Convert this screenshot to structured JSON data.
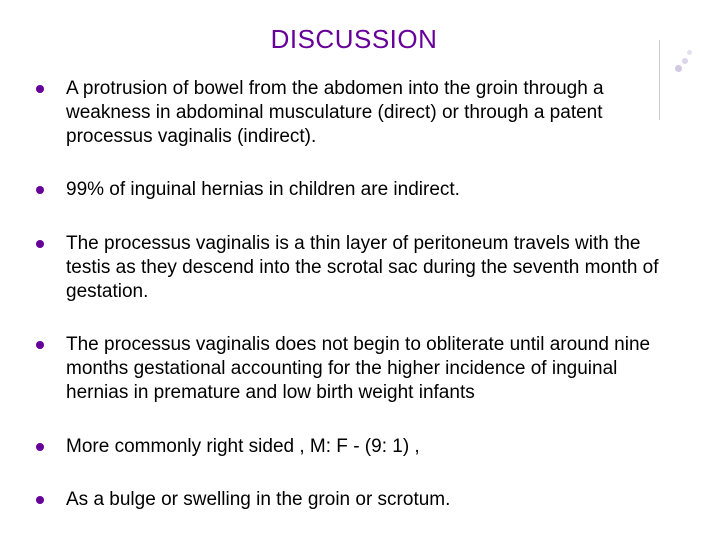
{
  "title": "DISCUSSION",
  "title_color": "#660099",
  "text_color": "#000000",
  "bullet_color": "#660099",
  "background_color": "#ffffff",
  "title_fontsize": 26,
  "body_fontsize": 19,
  "bullets": [
    "A protrusion of bowel from the abdomen into the groin through a weakness in abdominal musculature (direct) or through a patent processus vaginalis (indirect).",
    "99% of inguinal hernias in children are indirect.",
    "The processus vaginalis is a thin layer of peritoneum  travels with the testis as they descend into the scrotal sac during the seventh month of gestation.",
    "The processus vaginalis does not begin to obliterate until around nine months gestational accounting for the higher incidence of inguinal hernias in premature and low birth weight infants",
    "More commonly right sided , M: F - (9: 1) ,",
    "As a bulge or swelling in the groin or scrotum."
  ]
}
